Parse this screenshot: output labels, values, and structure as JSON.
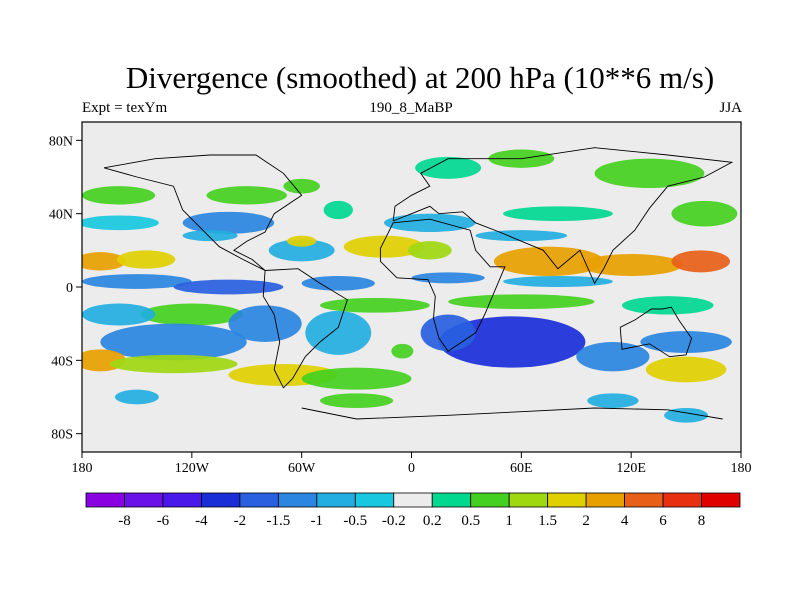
{
  "title": "Divergence (smoothed) at 200 hPa (10**6 m/s)",
  "subtitle_left": "Expt = texYm",
  "subtitle_center": "190_8_MaBP",
  "subtitle_right": "JJA",
  "chart_data": {
    "type": "heatmap",
    "title": "Divergence (smoothed) at 200 hPa (10**6 m/s)",
    "xlabel": "",
    "ylabel": "",
    "x_ticks": [
      "180",
      "120W",
      "60W",
      "0",
      "60E",
      "120E",
      "180"
    ],
    "y_ticks": [
      "80N",
      "40N",
      "0",
      "40S",
      "80S"
    ],
    "xlim": [
      -180,
      180
    ],
    "ylim": [
      -90,
      90
    ],
    "colorbar": {
      "labels": [
        "-8",
        "-6",
        "-4",
        "-2",
        "-1.5",
        "-1",
        "-0.5",
        "-0.2",
        "0.2",
        "0.5",
        "1",
        "1.5",
        "2",
        "4",
        "6",
        "8"
      ],
      "colors": [
        "#8a00e0",
        "#6a10e8",
        "#4a18e8",
        "#1a2ed8",
        "#2860e0",
        "#2a86e0",
        "#22aee0",
        "#18c8e0",
        "#ececec",
        "#00d890",
        "#44d020",
        "#a0d810",
        "#e0d000",
        "#e8a000",
        "#e86018",
        "#e83010",
        "#e00000"
      ]
    }
  }
}
